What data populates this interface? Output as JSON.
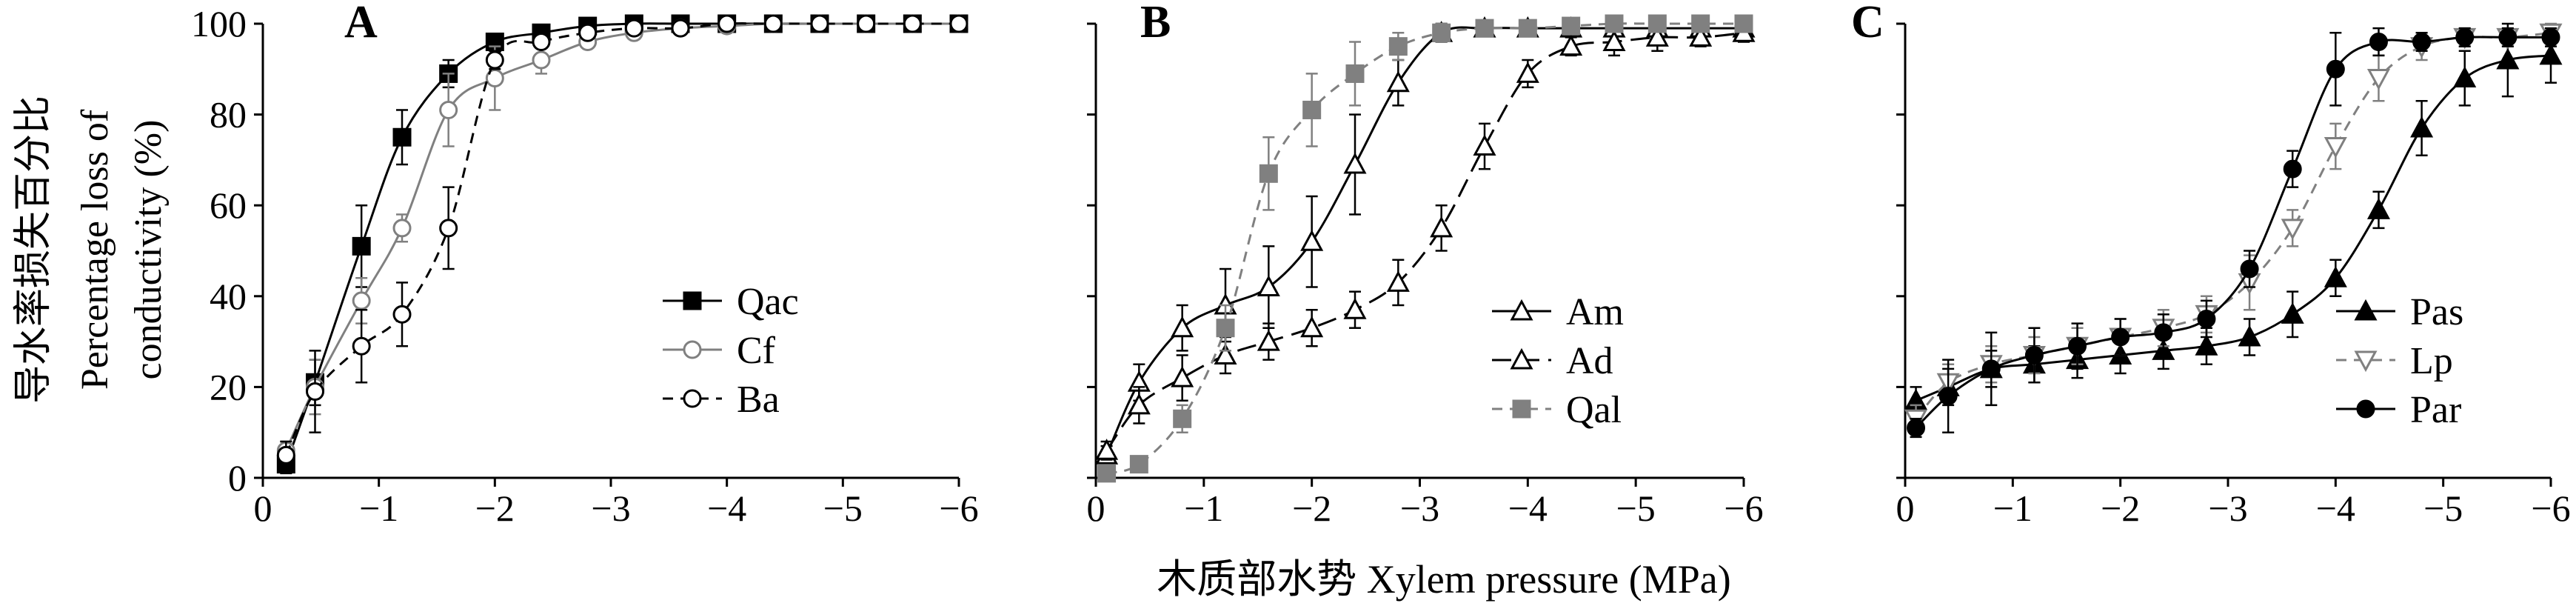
{
  "figure": {
    "ylabel_cn": "导水率损失百分比",
    "ylabel_en_1": "Percentage loss of",
    "ylabel_en_2": "conductivity (%)",
    "xlabel": "木质部水势 Xylem pressure (MPa)"
  },
  "chart_data": [
    {
      "type": "line",
      "panel_label": "A",
      "xlabel": "木质部水势 Xylem pressure (MPa)",
      "ylabel": "导水率损失百分比 Percentage loss of conductivity (%)",
      "xlim": [
        0,
        -6
      ],
      "ylim": [
        0,
        100
      ],
      "x_ticks": [
        0,
        -1,
        -2,
        -3,
        -4,
        -5,
        -6
      ],
      "x_tick_labels": [
        "0",
        "−1",
        "−2",
        "−3",
        "−4",
        "−5",
        "−6"
      ],
      "y_ticks": [
        0,
        20,
        40,
        60,
        80,
        100
      ],
      "y_tick_labels": [
        "0",
        "20",
        "40",
        "60",
        "80",
        "100"
      ],
      "legend_position": "center-right",
      "series": [
        {
          "name": "Qac",
          "marker": "square-filled",
          "dash": "solid",
          "color": "#000000",
          "x": [
            -0.2,
            -0.45,
            -0.85,
            -1.2,
            -1.6,
            -2.0,
            -2.4,
            -2.8,
            -3.2,
            -3.6,
            -4.0,
            -4.4,
            -4.8,
            -5.2,
            -5.6,
            -6.0
          ],
          "y": [
            3,
            21,
            51,
            75,
            89,
            96,
            98,
            99.5,
            100,
            100,
            100,
            100,
            100,
            100,
            100,
            100
          ],
          "err": [
            2,
            5,
            9,
            6,
            3,
            1.5,
            1,
            0.5,
            0,
            0,
            0,
            0,
            0,
            0,
            0,
            0
          ]
        },
        {
          "name": "Cf",
          "marker": "circle-open",
          "dash": "solid",
          "color": "#808080",
          "x": [
            -0.2,
            -0.45,
            -0.85,
            -1.2,
            -1.6,
            -2.0,
            -2.4,
            -2.8,
            -3.2,
            -3.6,
            -4.0,
            -4.4,
            -4.8,
            -5.2,
            -5.6,
            -6.0
          ],
          "y": [
            6,
            20,
            39,
            55,
            81,
            88,
            92,
            96,
            98,
            99,
            99.5,
            100,
            100,
            100,
            100,
            100
          ],
          "err": [
            2,
            6,
            5,
            3,
            8,
            7,
            3,
            1,
            1,
            0.5,
            0.5,
            0,
            0,
            0,
            0,
            0
          ]
        },
        {
          "name": "Ba",
          "marker": "circle-open",
          "dash": "dashed",
          "color": "#000000",
          "x": [
            -0.2,
            -0.45,
            -0.85,
            -1.2,
            -1.6,
            -2.0,
            -2.4,
            -2.8,
            -3.2,
            -3.6,
            -4.0,
            -4.4,
            -4.8,
            -5.2,
            -5.6,
            -6.0
          ],
          "y": [
            5,
            19,
            29,
            36,
            55,
            92,
            96,
            98,
            99,
            99,
            100,
            100,
            100,
            100,
            100,
            100
          ],
          "err": [
            3,
            9,
            8,
            7,
            9,
            2,
            1,
            1,
            0.5,
            0.5,
            0,
            0,
            0,
            0,
            0,
            0
          ]
        }
      ]
    },
    {
      "type": "line",
      "panel_label": "B",
      "xlabel": "木质部水势 Xylem pressure (MPa)",
      "xlim": [
        0,
        -6
      ],
      "ylim": [
        0,
        100
      ],
      "x_ticks": [
        0,
        -1,
        -2,
        -3,
        -4,
        -5,
        -6
      ],
      "x_tick_labels": [
        "0",
        "−1",
        "−2",
        "−3",
        "−4",
        "−5",
        "−6"
      ],
      "legend_position": "center-right",
      "series": [
        {
          "name": "Am",
          "marker": "triangle-open",
          "dash": "solid",
          "color": "#000000",
          "x": [
            -0.1,
            -0.4,
            -0.8,
            -1.2,
            -1.6,
            -2.0,
            -2.4,
            -2.8,
            -3.2,
            -3.6,
            -4.0,
            -4.4,
            -4.8,
            -5.2,
            -5.6,
            -6.0
          ],
          "y": [
            5,
            21,
            33,
            38,
            42,
            52,
            69,
            87,
            98,
            99,
            99,
            99,
            99,
            99,
            99,
            99
          ],
          "err": [
            2,
            4,
            5,
            8,
            9,
            10,
            11,
            5,
            2,
            1,
            1,
            1,
            1,
            1,
            1,
            1
          ]
        },
        {
          "name": "Ad",
          "marker": "triangle-open",
          "dash": "long-dashed",
          "color": "#000000",
          "x": [
            -0.1,
            -0.4,
            -0.8,
            -1.2,
            -1.6,
            -2.0,
            -2.4,
            -2.8,
            -3.2,
            -3.6,
            -4.0,
            -4.4,
            -4.8,
            -5.2,
            -5.6,
            -6.0
          ],
          "y": [
            6,
            16,
            22,
            27,
            30,
            33,
            37,
            43,
            55,
            73,
            89,
            95,
            96,
            97,
            97,
            98
          ],
          "err": [
            2,
            4,
            5,
            4,
            4,
            4,
            4,
            5,
            5,
            5,
            3,
            2,
            3,
            3,
            2,
            2
          ]
        },
        {
          "name": "Qal",
          "marker": "square-filled",
          "dash": "dashed",
          "color": "#808080",
          "x": [
            -0.1,
            -0.4,
            -0.8,
            -1.2,
            -1.6,
            -2.0,
            -2.4,
            -2.8,
            -3.2,
            -3.6,
            -4.0,
            -4.4,
            -4.8,
            -5.2,
            -5.6,
            -6.0
          ],
          "y": [
            1,
            3,
            13,
            33,
            67,
            81,
            89,
            95,
            98,
            99,
            99,
            99.5,
            100,
            100,
            100,
            100
          ],
          "err": [
            1,
            1,
            3,
            5,
            8,
            8,
            7,
            3,
            2,
            1,
            1,
            0.5,
            0,
            0,
            0,
            0
          ]
        }
      ]
    },
    {
      "type": "line",
      "panel_label": "C",
      "xlabel": "木质部水势 Xylem pressure (MPa)",
      "xlim": [
        0,
        -6
      ],
      "ylim": [
        0,
        100
      ],
      "x_ticks": [
        0,
        -1,
        -2,
        -3,
        -4,
        -5,
        -6
      ],
      "x_tick_labels": [
        "0",
        "−1",
        "−2",
        "−3",
        "−4",
        "−5",
        "−6"
      ],
      "legend_position": "center-right",
      "series": [
        {
          "name": "Pas",
          "marker": "triangle-filled",
          "dash": "solid",
          "color": "#000000",
          "x": [
            -0.1,
            -0.4,
            -0.8,
            -1.2,
            -1.6,
            -2.0,
            -2.4,
            -2.8,
            -3.2,
            -3.6,
            -4.0,
            -4.4,
            -4.8,
            -5.2,
            -5.6,
            -6.0
          ],
          "y": [
            17,
            20,
            24,
            25,
            26,
            27,
            28,
            29,
            31,
            36,
            44,
            59,
            77,
            88,
            92,
            93
          ],
          "err": [
            3,
            4,
            4,
            4,
            4,
            4,
            4,
            4,
            4,
            5,
            4,
            4,
            6,
            6,
            8,
            6
          ]
        },
        {
          "name": "Lp",
          "marker": "triangle-down-open",
          "dash": "dashed",
          "color": "#808080",
          "x": [
            -0.1,
            -0.4,
            -0.8,
            -1.2,
            -1.6,
            -2.0,
            -2.4,
            -2.8,
            -3.2,
            -3.6,
            -4.0,
            -4.4,
            -4.8,
            -5.2,
            -5.6,
            -6.0
          ],
          "y": [
            13,
            21,
            25,
            27,
            29,
            31,
            33,
            36,
            43,
            55,
            73,
            88,
            95,
            97,
            97,
            98
          ],
          "err": [
            3,
            4,
            4,
            4,
            4,
            4,
            4,
            4,
            6,
            4,
            5,
            5,
            3,
            2,
            2,
            2
          ]
        },
        {
          "name": "Par",
          "marker": "circle-filled",
          "dash": "solid",
          "color": "#000000",
          "x": [
            -0.1,
            -0.4,
            -0.8,
            -1.2,
            -1.6,
            -2.0,
            -2.4,
            -2.8,
            -3.2,
            -3.6,
            -4.0,
            -4.4,
            -4.8,
            -5.2,
            -5.6,
            -6.0
          ],
          "y": [
            11,
            18,
            24,
            27,
            29,
            31,
            32,
            35,
            46,
            68,
            90,
            96,
            96,
            97,
            97,
            97
          ],
          "err": [
            2,
            8,
            8,
            6,
            5,
            4,
            4,
            4,
            4,
            4,
            8,
            3,
            2,
            2,
            2,
            2
          ]
        }
      ]
    }
  ]
}
